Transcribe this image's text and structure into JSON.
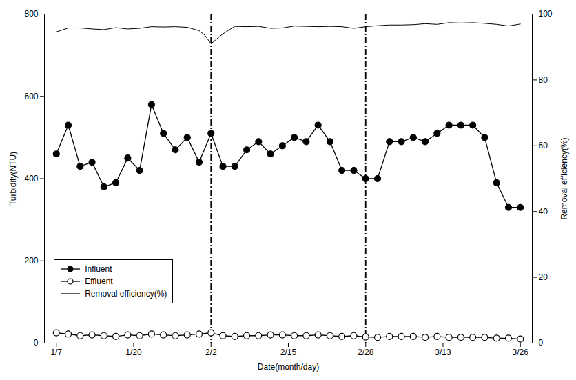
{
  "chart_data": {
    "type": "line",
    "xlabel": "Date(month/day)",
    "ylabel": "Turbidity(NTU)",
    "y2label": "Removal efficiency(%)",
    "xlim": [
      -2,
      80
    ],
    "xticks": [
      {
        "value": 0,
        "label": "1/7"
      },
      {
        "value": 13,
        "label": "1/20"
      },
      {
        "value": 26,
        "label": "2/2"
      },
      {
        "value": 39,
        "label": "2/15"
      },
      {
        "value": 52,
        "label": "2/28"
      },
      {
        "value": 65,
        "label": "3/13"
      },
      {
        "value": 78,
        "label": "3/26"
      }
    ],
    "ylim": [
      0,
      800
    ],
    "yticks": [
      0,
      200,
      400,
      600,
      800
    ],
    "y2lim": [
      0,
      100
    ],
    "y2ticks": [
      0,
      20,
      40,
      60,
      80,
      100
    ],
    "grid": false,
    "legend": "lower left",
    "vlines": {
      "x": [
        26,
        52
      ],
      "line_style": "dashdot"
    },
    "series": [
      {
        "name": "Influent",
        "color": "#000000",
        "marker": "filled_circle",
        "x": [
          0,
          2,
          4,
          6,
          8,
          10,
          12,
          14,
          16,
          18,
          20,
          22,
          24,
          26,
          28,
          30,
          32,
          34,
          36,
          38,
          40,
          42,
          44,
          46,
          48,
          50,
          52,
          54,
          56,
          58,
          60,
          62,
          64,
          66,
          68,
          70,
          72,
          74,
          76,
          78
        ],
        "values": [
          460,
          530,
          430,
          440,
          380,
          390,
          450,
          420,
          580,
          510,
          470,
          500,
          440,
          510,
          430,
          430,
          470,
          490,
          460,
          480,
          500,
          490,
          530,
          490,
          420,
          420,
          400,
          400,
          490,
          490,
          500,
          490,
          510,
          530,
          530,
          530,
          500,
          390,
          330,
          330
        ]
      },
      {
        "name": "Effluent",
        "color": "#000000",
        "marker": "open_circle",
        "x": [
          0,
          2,
          4,
          6,
          8,
          10,
          12,
          14,
          16,
          18,
          20,
          22,
          24,
          26,
          28,
          30,
          32,
          34,
          36,
          38,
          40,
          42,
          44,
          46,
          48,
          50,
          52,
          54,
          56,
          58,
          60,
          62,
          64,
          66,
          68,
          70,
          72,
          74,
          76,
          78
        ],
        "values": [
          25,
          22,
          18,
          20,
          18,
          16,
          20,
          18,
          22,
          20,
          18,
          20,
          22,
          25,
          18,
          16,
          18,
          18,
          20,
          20,
          18,
          18,
          20,
          18,
          16,
          18,
          15,
          14,
          16,
          16,
          16,
          14,
          16,
          14,
          14,
          14,
          14,
          12,
          12,
          10
        ]
      },
      {
        "name": "Removal efficiency(%)",
        "color": "#000000",
        "axis": "y2",
        "x": [
          0,
          2,
          4,
          6,
          8,
          10,
          12,
          14,
          16,
          18,
          20,
          22,
          24,
          25,
          26,
          27,
          28,
          30,
          32,
          34,
          36,
          38,
          40,
          42,
          44,
          46,
          48,
          50,
          52,
          54,
          56,
          58,
          60,
          62,
          64,
          66,
          68,
          70,
          72,
          74,
          76,
          78
        ],
        "values": [
          94.6,
          95.8,
          95.8,
          95.5,
          95.3,
          95.9,
          95.5,
          95.7,
          96.2,
          96.1,
          96.2,
          96.0,
          95.0,
          93.5,
          91.0,
          92.5,
          94.0,
          96.3,
          96.2,
          96.3,
          95.7,
          95.8,
          96.4,
          96.3,
          96.2,
          96.3,
          96.2,
          95.7,
          96.2,
          96.5,
          96.7,
          96.7,
          96.8,
          97.1,
          96.9,
          97.4,
          97.3,
          97.4,
          97.2,
          96.9,
          96.4,
          97.0
        ]
      }
    ]
  }
}
